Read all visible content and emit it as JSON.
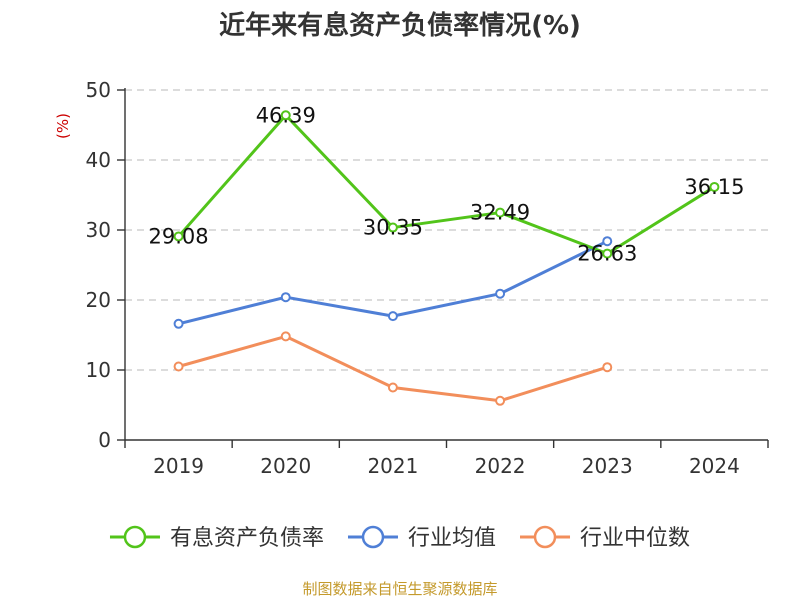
{
  "chart_data": {
    "type": "line",
    "title": "近年来有息资产负债率情况(%)",
    "ylabel": "(%)",
    "xlabel": "",
    "categories": [
      "2019",
      "2020",
      "2021",
      "2022",
      "2023",
      "2024"
    ],
    "ylim": [
      0,
      50
    ],
    "yticks": [
      0,
      10,
      20,
      30,
      40,
      50
    ],
    "grid": true,
    "legend_position": "bottom",
    "series": [
      {
        "name": "有息资产负债率",
        "color": "#52c41a",
        "values": [
          29.08,
          46.39,
          30.35,
          32.49,
          26.63,
          36.15
        ],
        "show_labels": true
      },
      {
        "name": "行业均值",
        "color": "#4f7fd6",
        "values": [
          16.6,
          20.4,
          17.7,
          20.9,
          28.4,
          null
        ],
        "show_labels": false
      },
      {
        "name": "行业中位数",
        "color": "#f28e5b",
        "values": [
          10.5,
          14.8,
          7.5,
          5.6,
          10.4,
          null
        ],
        "show_labels": false
      }
    ]
  },
  "source": "制图数据来自恒生聚源数据库"
}
